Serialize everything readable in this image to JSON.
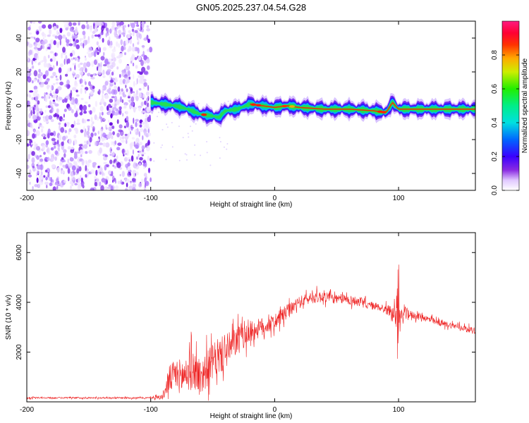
{
  "title": "GN05.2025.237.04.54.G28",
  "chart_data": [
    {
      "type": "heatmap",
      "name": "spectrogram",
      "xlabel": "Height of straight line (km)",
      "ylabel": "Frequency (Hz)",
      "xlim": [
        -200,
        162
      ],
      "ylim": [
        -50,
        50
      ],
      "xticks": [
        -200,
        -100,
        0,
        100
      ],
      "xtick_labels": [
        "-200",
        "-100",
        "0",
        "100"
      ],
      "yticks": [
        -40,
        -20,
        0,
        20,
        40
      ],
      "ytick_labels": [
        "-40",
        "-20",
        "0",
        "20",
        "40"
      ],
      "noise_region_x": [
        -200,
        -100
      ],
      "signal_track": {
        "x": [
          -100,
          -90,
          -80,
          -70,
          -60,
          -50,
          -45,
          -40,
          -30,
          -20,
          -10,
          0,
          10,
          20,
          40,
          60,
          80,
          90,
          95,
          100,
          120,
          140,
          162
        ],
        "freq": [
          2,
          1,
          0,
          -2,
          -5,
          -6,
          -7,
          -3,
          -2,
          1,
          0,
          -1,
          0,
          -1,
          -2,
          -2,
          -3,
          -4,
          2,
          -2,
          -2,
          -2,
          -2
        ]
      },
      "colorbar": {
        "label": "Normalized spectral amplitude",
        "range": [
          0,
          1
        ],
        "ticks": [
          0.0,
          0.2,
          0.4,
          0.6,
          0.8
        ],
        "tick_labels": [
          "0.0",
          "0.2",
          "0.4",
          "0.6",
          "0.8"
        ]
      }
    },
    {
      "type": "line",
      "name": "snr",
      "xlabel": "Height of straight line (km)",
      "ylabel": "SNR (10 * v/v)",
      "xlim": [
        -200,
        162
      ],
      "ylim": [
        0,
        6800
      ],
      "xticks": [
        -200,
        -100,
        0,
        100
      ],
      "xtick_labels": [
        "-200",
        "-100",
        "0",
        "100"
      ],
      "yticks": [
        2000,
        4000,
        6000
      ],
      "ytick_labels": [
        "2000",
        "4000",
        "6000"
      ],
      "color": "#ee2222",
      "series": [
        {
          "name": "SNR",
          "x": [
            -200,
            -180,
            -160,
            -140,
            -120,
            -100,
            -90,
            -88,
            -85,
            -80,
            -75,
            -70,
            -65,
            -60,
            -55,
            -50,
            -45,
            -40,
            -35,
            -30,
            -25,
            -20,
            -15,
            -10,
            -5,
            0,
            5,
            10,
            15,
            20,
            25,
            30,
            35,
            40,
            45,
            50,
            55,
            60,
            65,
            70,
            75,
            80,
            85,
            90,
            95,
            98,
            99,
            100,
            101,
            102,
            105,
            110,
            120,
            130,
            140,
            150,
            162
          ],
          "y": [
            160,
            160,
            160,
            160,
            160,
            160,
            200,
            500,
            900,
            1100,
            1000,
            1200,
            1300,
            1000,
            1300,
            1600,
            1800,
            2000,
            2200,
            2500,
            2700,
            2800,
            2900,
            3000,
            3100,
            3200,
            3400,
            3600,
            3800,
            4000,
            4100,
            4200,
            4200,
            4250,
            4200,
            4100,
            4150,
            4100,
            4050,
            4000,
            3900,
            3850,
            3800,
            3700,
            3650,
            3400,
            3800,
            4000,
            3500,
            3300,
            3600,
            3500,
            3400,
            3200,
            3100,
            3000,
            2850
          ],
          "noise_amplitude": [
            40,
            40,
            40,
            40,
            40,
            40,
            150,
            300,
            700,
            800,
            900,
            1000,
            1000,
            1000,
            900,
            900,
            900,
            900,
            800,
            700,
            700,
            600,
            500,
            500,
            400,
            400,
            400,
            400,
            300,
            300,
            300,
            300,
            300,
            300,
            250,
            250,
            250,
            250,
            250,
            250,
            200,
            200,
            200,
            250,
            300,
            500,
            1500,
            2500,
            1000,
            500,
            300,
            200,
            180,
            160,
            150,
            150,
            150
          ]
        }
      ]
    }
  ]
}
